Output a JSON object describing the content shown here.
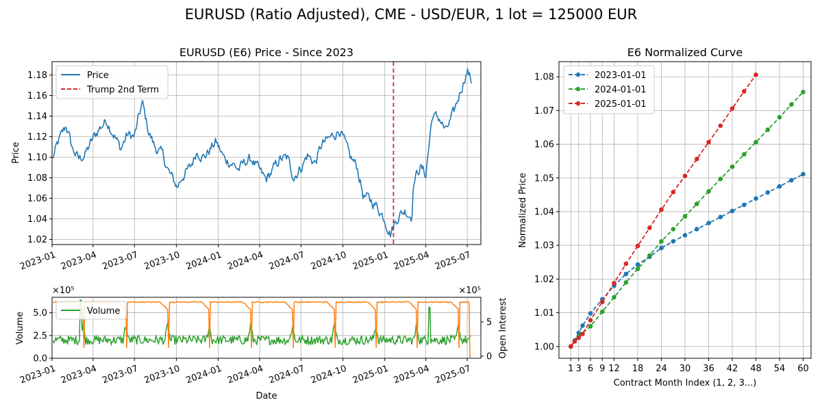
{
  "suptitle": "EURUSD (Ratio Adjusted), CME - USD/EUR, 1 lot = 125000 EUR",
  "chart_data": [
    {
      "type": "line",
      "title": "EURUSD (E6) Price - Since 2023",
      "xlabel": "",
      "ylabel": "Price",
      "x_ticks": [
        "2023-01",
        "2023-04",
        "2023-07",
        "2023-10",
        "2024-01",
        "2024-04",
        "2024-07",
        "2024-10",
        "2025-01",
        "2025-04",
        "2025-07"
      ],
      "y_ticks": [
        "1.02",
        "1.04",
        "1.06",
        "1.08",
        "1.10",
        "1.12",
        "1.14",
        "1.16",
        "1.18"
      ],
      "ylim": [
        1.015,
        1.193
      ],
      "grid": true,
      "legend_position": "top-left",
      "series": [
        {
          "name": "Price",
          "color": "#1f77b4",
          "points": [
            [
              "2023-01-02",
              1.098
            ],
            [
              "2023-01-15",
              1.115
            ],
            [
              "2023-02-01",
              1.131
            ],
            [
              "2023-02-15",
              1.108
            ],
            [
              "2023-03-01",
              1.098
            ],
            [
              "2023-03-15",
              1.103
            ],
            [
              "2023-04-01",
              1.118
            ],
            [
              "2023-04-15",
              1.128
            ],
            [
              "2023-05-01",
              1.136
            ],
            [
              "2023-05-15",
              1.124
            ],
            [
              "2023-06-01",
              1.108
            ],
            [
              "2023-06-15",
              1.122
            ],
            [
              "2023-07-01",
              1.12
            ],
            [
              "2023-07-18",
              1.153
            ],
            [
              "2023-08-01",
              1.125
            ],
            [
              "2023-08-15",
              1.11
            ],
            [
              "2023-09-01",
              1.102
            ],
            [
              "2023-09-15",
              1.085
            ],
            [
              "2023-10-03",
              1.071
            ],
            [
              "2023-10-15",
              1.082
            ],
            [
              "2023-11-01",
              1.09
            ],
            [
              "2023-11-15",
              1.106
            ],
            [
              "2023-12-01",
              1.1
            ],
            [
              "2023-12-27",
              1.115
            ],
            [
              "2024-01-15",
              1.098
            ],
            [
              "2024-02-01",
              1.094
            ],
            [
              "2024-02-15",
              1.088
            ],
            [
              "2024-03-01",
              1.096
            ],
            [
              "2024-03-15",
              1.098
            ],
            [
              "2024-04-01",
              1.086
            ],
            [
              "2024-04-15",
              1.078
            ],
            [
              "2024-05-01",
              1.088
            ],
            [
              "2024-05-15",
              1.098
            ],
            [
              "2024-06-01",
              1.099
            ],
            [
              "2024-06-15",
              1.081
            ],
            [
              "2024-07-01",
              1.09
            ],
            [
              "2024-07-15",
              1.102
            ],
            [
              "2024-08-01",
              1.094
            ],
            [
              "2024-08-15",
              1.112
            ],
            [
              "2024-09-01",
              1.118
            ],
            [
              "2024-09-25",
              1.127
            ],
            [
              "2024-10-15",
              1.101
            ],
            [
              "2024-11-01",
              1.091
            ],
            [
              "2024-11-15",
              1.062
            ],
            [
              "2024-12-01",
              1.058
            ],
            [
              "2024-12-15",
              1.052
            ],
            [
              "2025-01-01",
              1.04
            ],
            [
              "2025-01-13",
              1.026
            ],
            [
              "2025-02-01",
              1.044
            ],
            [
              "2025-02-15",
              1.048
            ],
            [
              "2025-03-01",
              1.042
            ],
            [
              "2025-03-05",
              1.076
            ],
            [
              "2025-03-20",
              1.091
            ],
            [
              "2025-04-01",
              1.083
            ],
            [
              "2025-04-15",
              1.14
            ],
            [
              "2025-05-01",
              1.138
            ],
            [
              "2025-05-15",
              1.125
            ],
            [
              "2025-06-01",
              1.142
            ],
            [
              "2025-06-15",
              1.163
            ],
            [
              "2025-07-01",
              1.185
            ],
            [
              "2025-07-10",
              1.174
            ]
          ]
        }
      ],
      "vline": {
        "name": "Trump 2nd Term",
        "x": "2025-01-20",
        "color": "#d62728"
      }
    },
    {
      "type": "line",
      "title": "",
      "xlabel": "Date",
      "ylabel": "Volume",
      "y2label": "Open Interest",
      "y_scale_note": "×10⁵",
      "y2_scale_note": "×10⁵",
      "x_ticks": [
        "2023-01",
        "2023-04",
        "2023-07",
        "2023-10",
        "2024-01",
        "2024-04",
        "2024-07",
        "2024-10",
        "2025-01",
        "2025-04",
        "2025-07"
      ],
      "y_ticks": [
        "0.0",
        "2.5",
        "5.0"
      ],
      "y2_ticks": [
        "0",
        "5"
      ],
      "ylim": [
        0,
        6.7
      ],
      "y2lim": [
        -0.3,
        8.6
      ],
      "grid": true,
      "legend_position": "top-left",
      "series": [
        {
          "name": "Volume",
          "axis": "left",
          "color": "#2ca02c",
          "baseline": 2.0,
          "amplitude": 0.5
        },
        {
          "name": "Open Interest",
          "axis": "right",
          "color": "#ff7f0e",
          "level": 7.9,
          "roll_dates": [
            "2023-03-10",
            "2023-06-12",
            "2023-09-12",
            "2023-12-12",
            "2024-03-12",
            "2024-06-12",
            "2024-09-12",
            "2024-12-12",
            "2025-03-12",
            "2025-06-12"
          ]
        }
      ]
    },
    {
      "type": "line",
      "title": "E6 Normalized Curve",
      "xlabel": "Contract Month Index (1, 2, 3...)",
      "ylabel": "Normalized Price",
      "x_ticks": [
        "1",
        "3",
        "6",
        "9",
        "12",
        "18",
        "24",
        "30",
        "36",
        "42",
        "48",
        "54",
        "60"
      ],
      "y_ticks": [
        "1.00",
        "1.01",
        "1.02",
        "1.03",
        "1.04",
        "1.05",
        "1.06",
        "1.07",
        "1.08"
      ],
      "xlim": [
        -2,
        62
      ],
      "ylim": [
        0.9965,
        1.0845
      ],
      "grid": true,
      "legend_position": "top-left",
      "series": [
        {
          "name": "2023-01-01",
          "color": "#1f77b4",
          "x": [
            1,
            2,
            3,
            4,
            6,
            9,
            12,
            15,
            18,
            21,
            24,
            27,
            30,
            33,
            36,
            39,
            42,
            45,
            48,
            51,
            54,
            57,
            60
          ],
          "values": [
            1.0,
            1.0018,
            1.004,
            1.0062,
            1.0098,
            1.014,
            1.018,
            1.0215,
            1.0243,
            1.0266,
            1.0292,
            1.0312,
            1.033,
            1.0348,
            1.0366,
            1.0384,
            1.0402,
            1.042,
            1.0439,
            1.0457,
            1.0475,
            1.0493,
            1.0511
          ]
        },
        {
          "name": "2024-01-01",
          "color": "#2ca02c",
          "x": [
            1,
            3,
            6,
            9,
            12,
            15,
            18,
            21,
            24,
            27,
            30,
            33,
            36,
            39,
            42,
            45,
            48,
            51,
            54,
            57,
            60
          ],
          "values": [
            1.0,
            1.003,
            1.006,
            1.0103,
            1.0146,
            1.019,
            1.023,
            1.027,
            1.0312,
            1.0348,
            1.0386,
            1.0423,
            1.046,
            1.0497,
            1.0533,
            1.057,
            1.0606,
            1.0643,
            1.068,
            1.0718,
            1.0755
          ]
        },
        {
          "name": "2025-01-01",
          "color": "#d62728",
          "x": [
            1,
            2,
            3,
            4,
            6,
            9,
            12,
            15,
            18,
            21,
            24,
            27,
            30,
            33,
            36,
            39,
            42,
            45,
            48
          ],
          "values": [
            1.0,
            1.0015,
            1.0026,
            1.0037,
            1.0078,
            1.0132,
            1.0188,
            1.0245,
            1.0298,
            1.0352,
            1.0406,
            1.0458,
            1.0506,
            1.0556,
            1.0606,
            1.0655,
            1.0706,
            1.0757,
            1.0806
          ]
        }
      ]
    }
  ]
}
